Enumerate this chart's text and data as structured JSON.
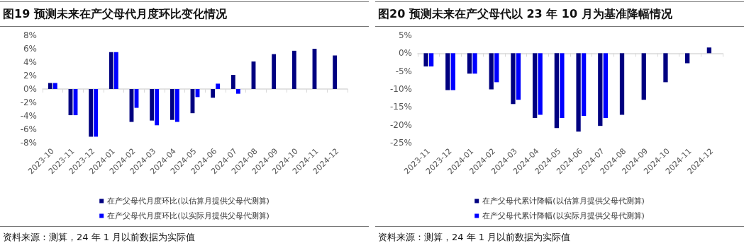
{
  "chart_data": [
    {
      "type": "bar",
      "title": "图19 预测未来在产父母代月度环比变化情况",
      "categories": [
        "2023-10",
        "2023-11",
        "2023-12",
        "2024-01",
        "2024-02",
        "2024-03",
        "2024-04",
        "2024-05",
        "2024-06",
        "2024-07",
        "2024-08",
        "2024-09",
        "2024-10",
        "2024-11",
        "2024-12"
      ],
      "series": [
        {
          "name": "在产父母代月度环比(以估算月提供父母代测算)",
          "color": "#000080",
          "values": [
            0.9,
            -3.9,
            -7.1,
            5.5,
            -4.9,
            -4.7,
            -4.6,
            -3.6,
            -1.3,
            2.1,
            4.1,
            5.2,
            5.7,
            6.0,
            5.0
          ]
        },
        {
          "name": "在产父母代月度环比(以实际月提供父母代测算)",
          "color": "#0000ff",
          "values": [
            0.9,
            -3.9,
            -7.1,
            5.5,
            -2.8,
            -5.4,
            -4.9,
            -1.2,
            0.8,
            -0.7,
            null,
            null,
            null,
            null,
            null
          ]
        }
      ],
      "ylim": [
        -8,
        8
      ],
      "yticks": [
        {
          "value": -8,
          "label": "-8%"
        },
        {
          "value": -6,
          "label": "-6%"
        },
        {
          "value": -4,
          "label": "-4%"
        },
        {
          "value": -2,
          "label": "-2%"
        },
        {
          "value": 0,
          "label": "0%"
        },
        {
          "value": 2,
          "label": "2%"
        },
        {
          "value": 4,
          "label": "4%"
        },
        {
          "value": 6,
          "label": "6%"
        },
        {
          "value": 8,
          "label": "8%"
        }
      ],
      "legend": "bottom",
      "annotations": [
        "资料来源：测算，24 年 1 月以前数据为实际值"
      ]
    },
    {
      "type": "bar",
      "title": "图20 预测未来在产父母代以 23 年 10 月为基准降幅情况",
      "categories": [
        "2023-11",
        "2023-12",
        "2024-01",
        "2024-02",
        "2024-03",
        "2024-04",
        "2024-05",
        "2024-06",
        "2024-07",
        "2024-08",
        "2024-09",
        "2024-10",
        "2024-11",
        "2024-12"
      ],
      "series": [
        {
          "name": "在产父母代累计降幅(以估算月提供父母代测算)",
          "color": "#000080",
          "values": [
            -3.7,
            -10.3,
            -5.7,
            -10.1,
            -14.2,
            -18.1,
            -20.9,
            -21.9,
            -20.3,
            -17.2,
            -13.0,
            -8.1,
            -2.8,
            1.6
          ]
        },
        {
          "name": "在产父母代累计降幅(以实际月提供父母代测算)",
          "color": "#0000ff",
          "values": [
            -3.7,
            -10.3,
            -5.7,
            -8.1,
            -13.0,
            -17.2,
            -18.1,
            -17.5,
            -18.1,
            null,
            null,
            null,
            null,
            null
          ]
        }
      ],
      "ylim": [
        -25,
        5
      ],
      "yticks": [
        {
          "value": -25,
          "label": "-25%"
        },
        {
          "value": -20,
          "label": "-20%"
        },
        {
          "value": -15,
          "label": "-15%"
        },
        {
          "value": -10,
          "label": "-10%"
        },
        {
          "value": -5,
          "label": "-5%"
        },
        {
          "value": 0,
          "label": "0%"
        },
        {
          "value": 5,
          "label": "5%"
        }
      ],
      "legend": "bottom",
      "annotations": [
        "资料来源：测算，24 年 1 月以前数据为实际值"
      ]
    }
  ]
}
